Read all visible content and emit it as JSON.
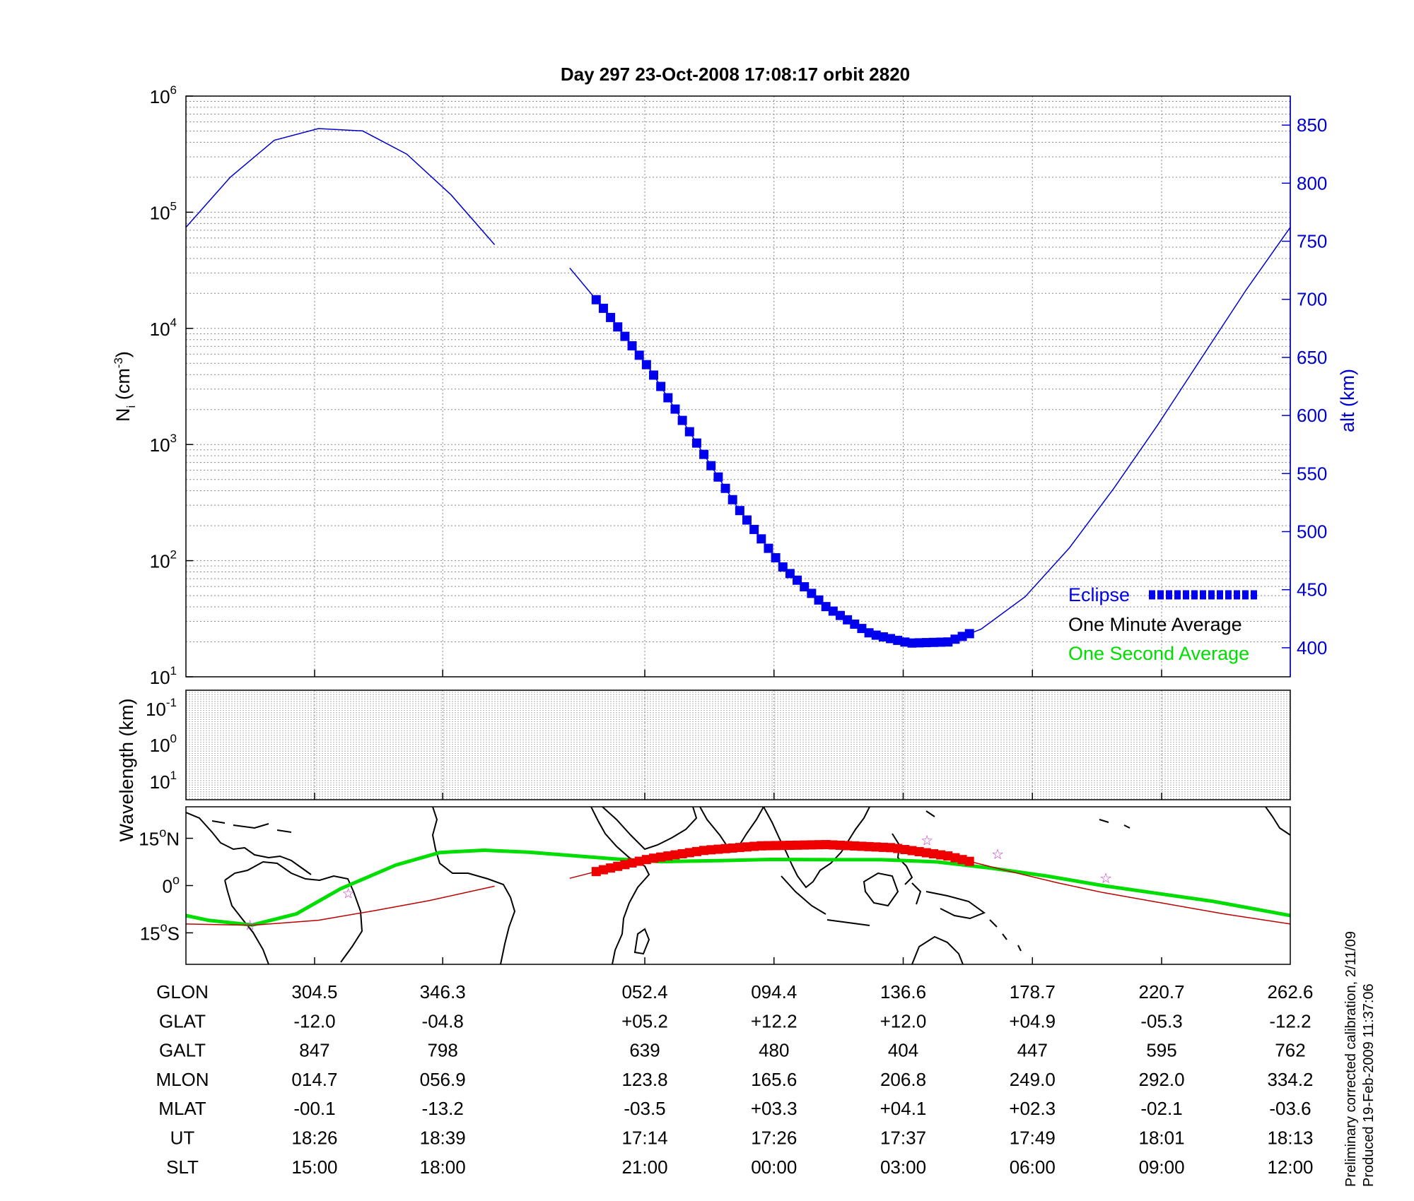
{
  "chart_data": [
    {
      "type": "line",
      "title": "Day 297  23-Oct-2008 17:08:17   orbit 2820",
      "ylabel": {
        "base": "N",
        "sub": "i",
        "unit_open": " (cm",
        "unit_exp": "-3",
        "unit_close": ")"
      },
      "yscale": "log",
      "ylim": [
        10,
        1000000
      ],
      "ytick_labels": [
        {
          "value": 10,
          "base": "10",
          "exp": "1"
        },
        {
          "value": 100,
          "base": "10",
          "exp": "2"
        },
        {
          "value": 1000,
          "base": "10",
          "exp": "3"
        },
        {
          "value": 10000,
          "base": "10",
          "exp": "4"
        },
        {
          "value": 100000,
          "base": "10",
          "exp": "5"
        },
        {
          "value": 1000000,
          "base": "10",
          "exp": "6"
        }
      ],
      "y2label": "alt (km)",
      "y2lim": [
        375,
        875
      ],
      "y2ticks": [
        400,
        450,
        500,
        550,
        600,
        650,
        700,
        750,
        800,
        850
      ],
      "grid": true,
      "series": [
        {
          "name": "alt (km)",
          "color": "#0000cc",
          "points": [
            [
              0.0,
              762
            ],
            [
              0.04,
              805
            ],
            [
              0.08,
              837
            ],
            [
              0.12,
              847
            ],
            [
              0.16,
              845
            ],
            [
              0.2,
              825
            ],
            [
              0.24,
              790
            ],
            [
              0.2795,
              747
            ]
          ],
          "points_after_gap": [
            [
              0.3475,
              727
            ],
            [
              0.38,
              690
            ],
            [
              0.42,
              640
            ],
            [
              0.46,
              580
            ],
            [
              0.5,
              520
            ],
            [
              0.54,
              470
            ],
            [
              0.58,
              435
            ],
            [
              0.62,
              412
            ],
            [
              0.655,
              404
            ],
            [
              0.69,
              405
            ],
            [
              0.72,
              416
            ],
            [
              0.76,
              444
            ],
            [
              0.8,
              486
            ],
            [
              0.84,
              537
            ],
            [
              0.88,
              592
            ],
            [
              0.92,
              650
            ],
            [
              0.96,
              708
            ],
            [
              1.0,
              762
            ]
          ]
        },
        {
          "name": "Eclipse",
          "color": "#0000ee",
          "x_start": 0.3715,
          "x_end": 0.7135
        },
        {
          "name": "One Minute Average",
          "color": "#000000",
          "points": []
        },
        {
          "name": "One Second Average",
          "color": "#00ee00",
          "points": []
        }
      ],
      "legend": {
        "position": "bottom-right",
        "items": [
          {
            "label": "Eclipse",
            "color": "#0000ee"
          },
          {
            "label": "One Minute Average",
            "color": "#000000"
          },
          {
            "label": "One Second Average",
            "color": "#00dd00"
          }
        ]
      }
    },
    {
      "type": "heatmap",
      "ylabel": "Wavelength (km)",
      "ytick_labels": [
        {
          "base": "10",
          "exp": "-1"
        },
        {
          "base": "10",
          "exp": "0"
        },
        {
          "base": "10",
          "exp": "1"
        }
      ],
      "grid": true
    },
    {
      "type": "line",
      "name": "ground track map",
      "ytick_labels": [
        {
          "value": 15,
          "text": "15",
          "suffix": "N"
        },
        {
          "value": 0,
          "text": "0",
          "suffix": ""
        },
        {
          "value": -15,
          "text": "15",
          "suffix": "S"
        }
      ],
      "ylim": [
        -25,
        25
      ],
      "series": [
        {
          "name": "magnetic equator",
          "color": "#00dd00",
          "points": [
            [
              0.0,
              -9.5
            ],
            [
              0.02,
              -11
            ],
            [
              0.06,
              -12.5
            ],
            [
              0.1,
              -9
            ],
            [
              0.14,
              -1
            ],
            [
              0.19,
              6.5
            ],
            [
              0.23,
              10.5
            ],
            [
              0.27,
              11.2
            ],
            [
              0.31,
              10.6
            ],
            [
              0.35,
              9.5
            ],
            [
              0.39,
              8.4
            ],
            [
              0.43,
              7.6
            ],
            [
              0.48,
              7.9
            ],
            [
              0.53,
              8.3
            ],
            [
              0.58,
              8.2
            ],
            [
              0.63,
              8.2
            ],
            [
              0.68,
              7.5
            ],
            [
              0.73,
              5.5
            ],
            [
              0.78,
              3
            ],
            [
              0.83,
              0
            ],
            [
              0.88,
              -2.5
            ],
            [
              0.93,
              -5
            ],
            [
              1.0,
              -9.5
            ]
          ]
        },
        {
          "name": "ground track",
          "color": "#bb0000",
          "points": [
            [
              0.0,
              -12.2
            ],
            [
              0.06,
              -12.6
            ],
            [
              0.12,
              -11
            ],
            [
              0.17,
              -8
            ],
            [
              0.22,
              -4.8
            ],
            [
              0.2795,
              -0.2
            ]
          ],
          "points_after_gap": [
            [
              0.3475,
              2.3
            ],
            [
              0.38,
              5.2
            ],
            [
              0.42,
              8.5
            ],
            [
              0.47,
              11.2
            ],
            [
              0.52,
              12.6
            ],
            [
              0.58,
              13
            ],
            [
              0.64,
              12
            ],
            [
              0.69,
              9.4
            ],
            [
              0.74,
              5
            ],
            [
              0.79,
              0.8
            ],
            [
              0.83,
              -2.2
            ],
            [
              0.88,
              -5.3
            ],
            [
              0.94,
              -9
            ],
            [
              1.0,
              -12.2
            ]
          ]
        },
        {
          "name": "Eclipse",
          "color": "#ee0000",
          "x_start": 0.3715,
          "x_end": 0.7135
        }
      ],
      "markers": [
        {
          "name": "magnetic-dip-equator crossing",
          "x": 0.058,
          "y": -12.6
        },
        {
          "name": "magnetic-dip-equator crossing",
          "x": 0.147,
          "y": -2.5
        },
        {
          "name": "magnetic-dip-equator crossing",
          "x": 0.671,
          "y": 14.3
        },
        {
          "name": "magnetic-dip-equator crossing",
          "x": 0.735,
          "y": 10
        },
        {
          "name": "magnetic-dip-equator crossing",
          "x": 0.833,
          "y": 2.4
        }
      ]
    }
  ],
  "table": {
    "rows": [
      {
        "label": "GLON",
        "values": [
          "304.5",
          "346.3",
          "052.4",
          "094.4",
          "136.6",
          "178.7",
          "220.7",
          "262.6"
        ]
      },
      {
        "label": "GLAT",
        "values": [
          "-12.0",
          "-04.8",
          "+05.2",
          "+12.2",
          "+12.0",
          "+04.9",
          "-05.3",
          "-12.2"
        ]
      },
      {
        "label": "GALT",
        "values": [
          "847",
          "798",
          "639",
          "480",
          "404",
          "447",
          "595",
          "762"
        ]
      },
      {
        "label": "MLON",
        "values": [
          "014.7",
          "056.9",
          "123.8",
          "165.6",
          "206.8",
          "249.0",
          "292.0",
          "334.2"
        ]
      },
      {
        "label": "MLAT",
        "values": [
          "-00.1",
          "-13.2",
          "-03.5",
          "+03.3",
          "+04.1",
          "+02.3",
          "-02.1",
          "-03.6"
        ]
      },
      {
        "label": "UT",
        "values": [
          "18:26",
          "18:39",
          "17:14",
          "17:26",
          "17:37",
          "17:49",
          "18:01",
          "18:13"
        ]
      },
      {
        "label": "SLT",
        "values": [
          "15:00",
          "18:00",
          "21:00",
          "00:00",
          "03:00",
          "06:00",
          "09:00",
          "12:00"
        ]
      }
    ]
  },
  "notes": {
    "line1": "Preliminary corrected calibration, 2/11/09",
    "line2": "Produced 19-Feb-2009 11:37:06"
  },
  "colors": {
    "alt_curve": "#0000cc",
    "eclipse_top": "#0000ee",
    "eclipse_map": "#ee0000",
    "mag_equator": "#00dd00",
    "ground_track": "#bb0000",
    "stars": "#cc33cc",
    "grid": "#888888"
  }
}
